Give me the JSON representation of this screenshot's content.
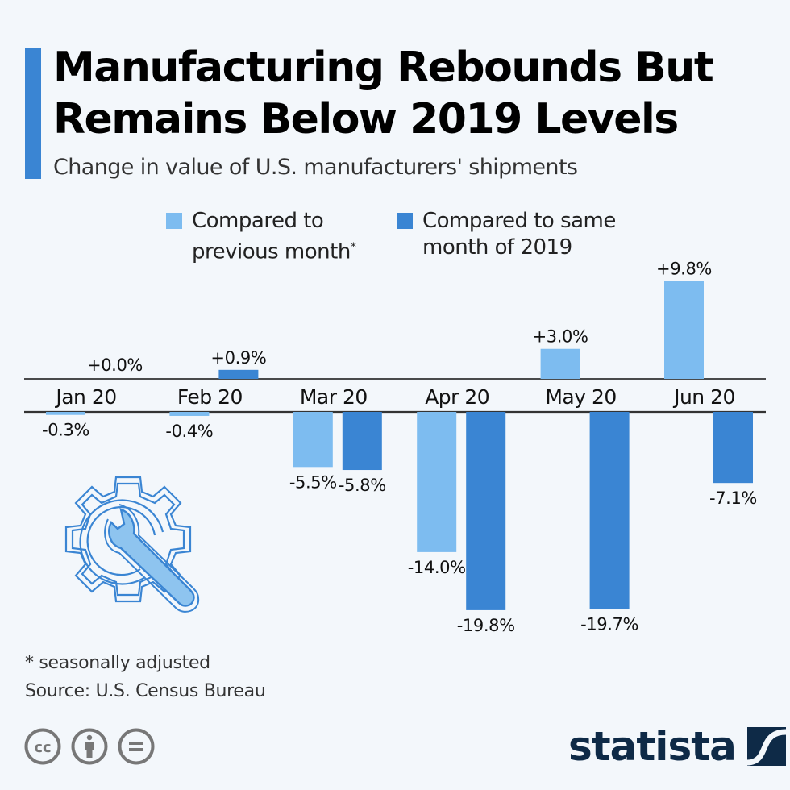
{
  "header": {
    "title_line1": "Manufacturing Rebounds But",
    "title_line2": "Remains Below 2019 Levels",
    "subtitle": "Change in value of U.S. manufacturers' shipments"
  },
  "colors": {
    "accent": "#3a85d3",
    "series_prev_month": "#7dbcf0",
    "series_2019": "#3a85d3",
    "text": "#111111",
    "logo": "#0e2a47",
    "background": "#f3f7fb"
  },
  "chart_data": {
    "type": "bar",
    "title": "Manufacturing Rebounds But Remains Below 2019 Levels",
    "subtitle": "Change in value of U.S. manufacturers' shipments",
    "xlabel": "",
    "ylabel": "",
    "ylim": [
      -20,
      10
    ],
    "grid": false,
    "legend_position": "top",
    "categories": [
      "Jan 20",
      "Feb 20",
      "Mar 20",
      "Apr 20",
      "May 20",
      "Jun 20"
    ],
    "series": [
      {
        "name": "Compared to previous month*",
        "color": "#7dbcf0",
        "values": [
          -0.3,
          -0.4,
          -5.5,
          -14.0,
          3.0,
          9.8
        ],
        "labels": [
          "-0.3%",
          "-0.4%",
          "-5.5%",
          "-14.0%",
          "+3.0%",
          "+9.8%"
        ]
      },
      {
        "name": "Compared to same month of 2019",
        "color": "#3a85d3",
        "values": [
          0.0,
          0.9,
          -5.8,
          -19.8,
          -19.7,
          -7.1
        ],
        "labels": [
          "+0.0%",
          "+0.9%",
          "-5.8%",
          "-19.8%",
          "-19.7%",
          "-7.1%"
        ]
      }
    ]
  },
  "legend": {
    "item1_line1": "Compared to",
    "item1_line2": "previous month",
    "item1_mark": "*",
    "item2_line1": "Compared to same",
    "item2_line2": "month of 2019"
  },
  "footer": {
    "footnote": "* seasonally adjusted",
    "source": "Source: U.S. Census Bureau",
    "license_icons": [
      "cc-icon",
      "attribution-icon",
      "no-derivatives-icon"
    ],
    "logo_text": "statista"
  }
}
